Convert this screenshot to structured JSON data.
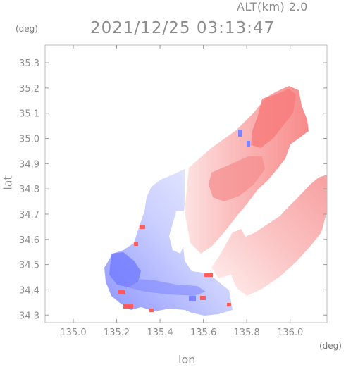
{
  "header": {
    "altitude_label": "ALT(km) 2.0",
    "timestamp": "2021/12/25 03:13:47"
  },
  "axes": {
    "x": {
      "label": "lon",
      "unit": "(deg)",
      "range": [
        134.87,
        136.17
      ],
      "ticks": [
        "135.0",
        "135.2",
        "135.4",
        "135.6",
        "135.8",
        "136.0"
      ],
      "tick_values": [
        135.0,
        135.2,
        135.4,
        135.6,
        135.8,
        136.0
      ]
    },
    "y": {
      "label": "lat",
      "unit": "(deg)",
      "range": [
        34.27,
        35.37
      ],
      "ticks": [
        "34.3",
        "34.4",
        "34.5",
        "34.6",
        "34.7",
        "34.8",
        "34.9",
        "35.0",
        "35.1",
        "35.2",
        "35.3"
      ],
      "tick_values": [
        34.3,
        34.4,
        34.5,
        34.6,
        34.7,
        34.8,
        34.9,
        35.0,
        35.1,
        35.2,
        35.3
      ]
    }
  },
  "colors": {
    "approaching": "#7a82ff",
    "receding": "#ff6b6b",
    "frame": "#bdbdbd",
    "text": "#8c8c8c"
  }
}
